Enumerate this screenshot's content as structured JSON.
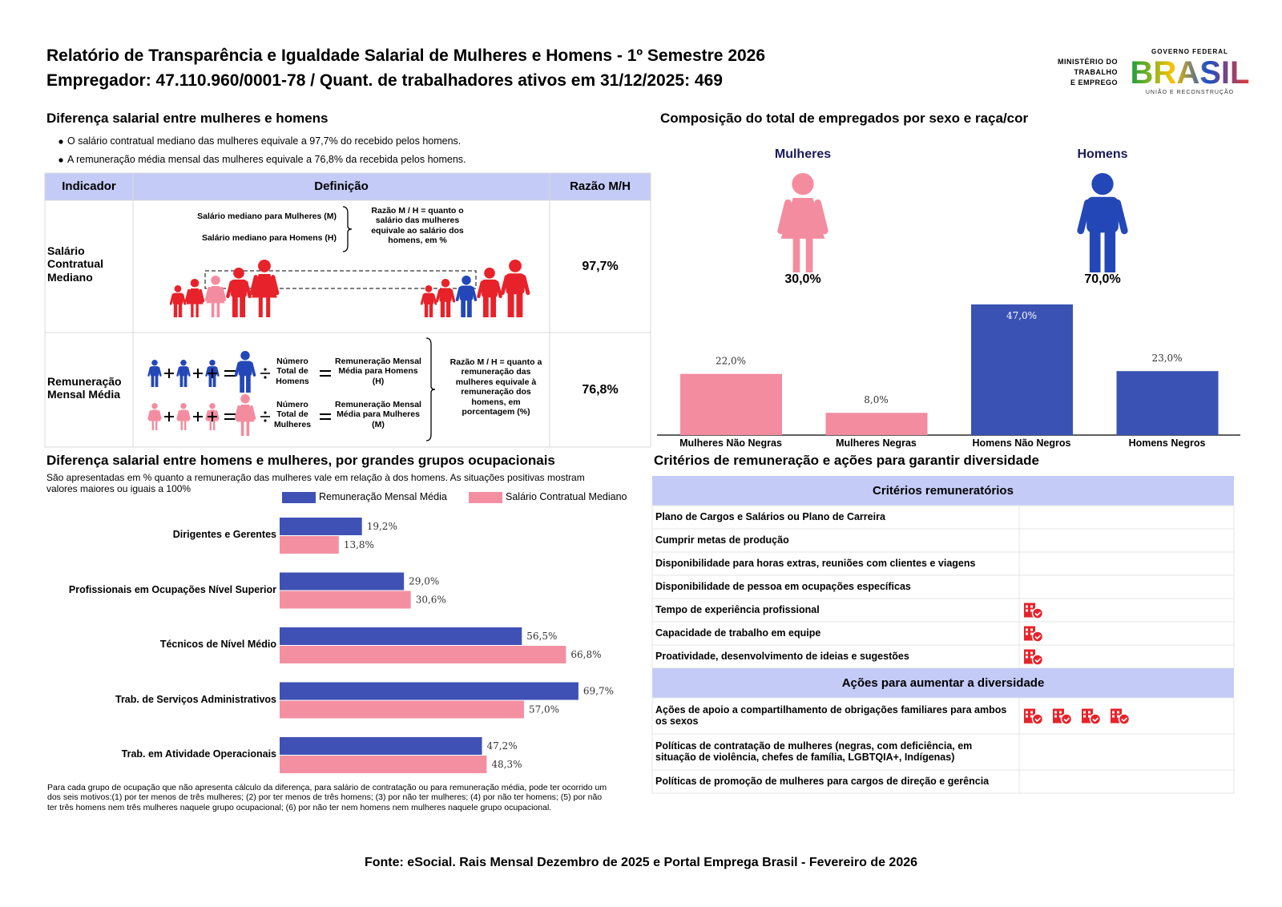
{
  "header": {
    "title": "Relatório de Transparência e Igualdade Salarial de Mulheres e Homens - 1º Semestre 2026",
    "subtitle": "Empregador: 47.110.960/0001-78 / Quant. de trabalhadores ativos em 31/12/2025: 469"
  },
  "logo": {
    "ministry": [
      "MINISTÉRIO DO",
      "TRABALHO",
      "E EMPREGO"
    ],
    "government": "GOVERNO FEDERAL",
    "brand": "BRASIL",
    "motto": "UNIÃO E RECONSTRUÇÃO"
  },
  "pay_gap": {
    "title": "Diferença salarial entre mulheres e homens",
    "bullets": [
      "O salário contratual mediano das mulheres equivale a 97,7% do recebido pelos homens.",
      "A remuneração média mensal das mulheres equivale a 76,8% da recebida pelos homens."
    ],
    "table": {
      "headers": [
        "Indicador",
        "Definição",
        "Razão M/H"
      ],
      "rows": [
        {
          "indicator": "Salário Contratual Mediano",
          "labels": [
            "Salário mediano para Mulheres (M)",
            "Salário mediano para Homens (H)"
          ],
          "note": "Razão M / H = quanto o salário das mulheres equivale ao salário dos homens, em %",
          "ratio": "97,7%"
        },
        {
          "indicator": "Remuneração Mensal Média",
          "labels": [
            "Número Total de Homens",
            "Remuneração Mensal Média para Homens (H)",
            "Número Total de Mulheres",
            "Remuneração Mensal Média para Mulheres (M)"
          ],
          "note": "Razão M / H = quanto a remuneração das mulheres equivale à remuneração dos homens, em porcentagem (%)",
          "ratio": "76,8%"
        }
      ]
    }
  },
  "composition": {
    "title": "Composição do total de empregados por sexo e raça/cor",
    "groups": [
      {
        "label": "Mulheres",
        "share": "30,0%",
        "color": "#f48ca0"
      },
      {
        "label": "Homens",
        "share": "70,0%",
        "color": "#2447b8"
      }
    ]
  },
  "chart_data": [
    {
      "type": "bar",
      "categories": [
        "Mulheres Não Negras",
        "Mulheres Negras",
        "Homens Não Negros",
        "Homens Negros"
      ],
      "values": [
        22,
        8,
        47,
        23
      ],
      "value_labels": [
        "22,0%",
        "8,0%",
        "47,0%",
        "23,0%"
      ],
      "colors": [
        "#f48ca0",
        "#f48ca0",
        "#3a52b4",
        "#3a52b4"
      ]
    },
    {
      "type": "barh",
      "categories": [
        "Dirigentes e Gerentes",
        "Profissionais em Ocupações Nível Superior",
        "Técnicos de Nível Médio",
        "Trab. de Serviços Administrativos",
        "Trab. em Atividade Operacionais"
      ],
      "series": [
        {
          "name": "Remuneração Mensal Média",
          "color": "#3f51b5",
          "values": [
            19.2,
            29.0,
            56.5,
            69.7,
            47.2
          ],
          "value_labels": [
            "19,2%",
            "29,0%",
            "56,5%",
            "69,7%",
            "47,2%"
          ]
        },
        {
          "name": "Salário Contratual Mediano",
          "color": "#f48fa1",
          "values": [
            13.8,
            30.6,
            66.8,
            57.0,
            48.3
          ],
          "value_labels": [
            "13,8%",
            "30,6%",
            "66,8%",
            "57,0%",
            "48,3%"
          ]
        }
      ]
    }
  ],
  "occupations": {
    "title": "Diferença salarial entre homens e mulheres, por grandes grupos ocupacionais",
    "description": "São apresentadas em % quanto a remuneração das mulheres vale em relação à dos homens. As situações positivas mostram valores maiores ou iguais a 100%",
    "footnote": "Para cada grupo de ocupação que não apresenta cálculo da diferença, para salário de contratação ou para remuneração média, pode ter ocorrido um dos seis motivos:(1) por ter menos de três mulheres; (2) por ter menos de três homens; (3) por não ter mulheres; (4) por não ter homens; (5) por não ter três homens nem três mulheres naquele grupo ocupacional; (6) por não ter nem homens nem mulheres naquele grupo ocupacional."
  },
  "criteria": {
    "title": "Critérios de remuneração e ações para garantir diversidade",
    "sections": [
      {
        "header": "Critérios remuneratórios",
        "rows": [
          {
            "label": "Plano de Cargos e Salários ou Plano de Carreira",
            "icons": 0
          },
          {
            "label": "Cumprir metas de produção",
            "icons": 0
          },
          {
            "label": "Disponibilidade para horas extras, reuniões com clientes e viagens",
            "icons": 0
          },
          {
            "label": "Disponibilidade de pessoa em ocupações específicas",
            "icons": 0
          },
          {
            "label": "Tempo de experiência profissional",
            "icons": 1
          },
          {
            "label": "Capacidade de trabalho em equipe",
            "icons": 1
          },
          {
            "label": "Proatividade, desenvolvimento de ideias e sugestões",
            "icons": 1
          }
        ]
      },
      {
        "header": "Ações para aumentar a diversidade",
        "rows": [
          {
            "label": "Ações de apoio a compartilhamento de obrigações familiares para ambos os sexos",
            "icons": 4
          },
          {
            "label": "Políticas de contratação de mulheres (negras, com deficiência, em situação de violência, chefes de família, LGBTQIA+, Indígenas)",
            "icons": 0
          },
          {
            "label": "Políticas de promoção de mulheres para cargos de direção e gerência",
            "icons": 0
          }
        ]
      }
    ]
  },
  "source": "Fonte: eSocial. Rais Mensal Dezembro de 2025 e Portal Emprega Brasil - Fevereiro de 2026"
}
